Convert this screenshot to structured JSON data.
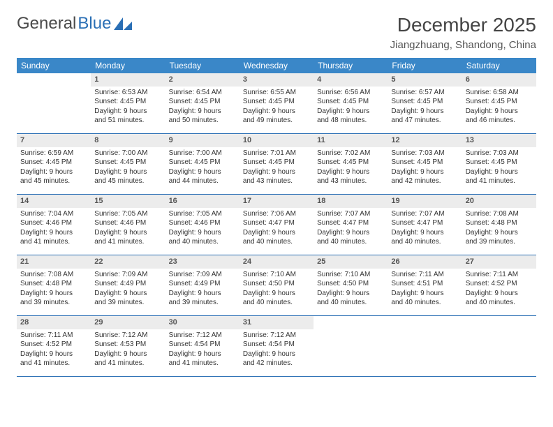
{
  "logo": {
    "part1": "General",
    "part2": "Blue"
  },
  "title": {
    "month": "December 2025",
    "location": "Jiangzhuang, Shandong, China"
  },
  "colors": {
    "header_bg": "#3a87c8",
    "header_text": "#ffffff",
    "daynum_bg": "#ececec",
    "border": "#2a6fb5",
    "logo_blue": "#2a6fb5",
    "text": "#333333"
  },
  "typography": {
    "body_fontsize": 10,
    "title_fontsize": 28,
    "location_fontsize": 15,
    "weekday_fontsize": 12
  },
  "weekdays": [
    "Sunday",
    "Monday",
    "Tuesday",
    "Wednesday",
    "Thursday",
    "Friday",
    "Saturday"
  ],
  "weeks": [
    [
      {
        "n": "",
        "sunrise": "",
        "sunset": "",
        "daylight1": "",
        "daylight2": ""
      },
      {
        "n": "1",
        "sunrise": "Sunrise: 6:53 AM",
        "sunset": "Sunset: 4:45 PM",
        "daylight1": "Daylight: 9 hours",
        "daylight2": "and 51 minutes."
      },
      {
        "n": "2",
        "sunrise": "Sunrise: 6:54 AM",
        "sunset": "Sunset: 4:45 PM",
        "daylight1": "Daylight: 9 hours",
        "daylight2": "and 50 minutes."
      },
      {
        "n": "3",
        "sunrise": "Sunrise: 6:55 AM",
        "sunset": "Sunset: 4:45 PM",
        "daylight1": "Daylight: 9 hours",
        "daylight2": "and 49 minutes."
      },
      {
        "n": "4",
        "sunrise": "Sunrise: 6:56 AM",
        "sunset": "Sunset: 4:45 PM",
        "daylight1": "Daylight: 9 hours",
        "daylight2": "and 48 minutes."
      },
      {
        "n": "5",
        "sunrise": "Sunrise: 6:57 AM",
        "sunset": "Sunset: 4:45 PM",
        "daylight1": "Daylight: 9 hours",
        "daylight2": "and 47 minutes."
      },
      {
        "n": "6",
        "sunrise": "Sunrise: 6:58 AM",
        "sunset": "Sunset: 4:45 PM",
        "daylight1": "Daylight: 9 hours",
        "daylight2": "and 46 minutes."
      }
    ],
    [
      {
        "n": "7",
        "sunrise": "Sunrise: 6:59 AM",
        "sunset": "Sunset: 4:45 PM",
        "daylight1": "Daylight: 9 hours",
        "daylight2": "and 45 minutes."
      },
      {
        "n": "8",
        "sunrise": "Sunrise: 7:00 AM",
        "sunset": "Sunset: 4:45 PM",
        "daylight1": "Daylight: 9 hours",
        "daylight2": "and 45 minutes."
      },
      {
        "n": "9",
        "sunrise": "Sunrise: 7:00 AM",
        "sunset": "Sunset: 4:45 PM",
        "daylight1": "Daylight: 9 hours",
        "daylight2": "and 44 minutes."
      },
      {
        "n": "10",
        "sunrise": "Sunrise: 7:01 AM",
        "sunset": "Sunset: 4:45 PM",
        "daylight1": "Daylight: 9 hours",
        "daylight2": "and 43 minutes."
      },
      {
        "n": "11",
        "sunrise": "Sunrise: 7:02 AM",
        "sunset": "Sunset: 4:45 PM",
        "daylight1": "Daylight: 9 hours",
        "daylight2": "and 43 minutes."
      },
      {
        "n": "12",
        "sunrise": "Sunrise: 7:03 AM",
        "sunset": "Sunset: 4:45 PM",
        "daylight1": "Daylight: 9 hours",
        "daylight2": "and 42 minutes."
      },
      {
        "n": "13",
        "sunrise": "Sunrise: 7:03 AM",
        "sunset": "Sunset: 4:45 PM",
        "daylight1": "Daylight: 9 hours",
        "daylight2": "and 41 minutes."
      }
    ],
    [
      {
        "n": "14",
        "sunrise": "Sunrise: 7:04 AM",
        "sunset": "Sunset: 4:46 PM",
        "daylight1": "Daylight: 9 hours",
        "daylight2": "and 41 minutes."
      },
      {
        "n": "15",
        "sunrise": "Sunrise: 7:05 AM",
        "sunset": "Sunset: 4:46 PM",
        "daylight1": "Daylight: 9 hours",
        "daylight2": "and 41 minutes."
      },
      {
        "n": "16",
        "sunrise": "Sunrise: 7:05 AM",
        "sunset": "Sunset: 4:46 PM",
        "daylight1": "Daylight: 9 hours",
        "daylight2": "and 40 minutes."
      },
      {
        "n": "17",
        "sunrise": "Sunrise: 7:06 AM",
        "sunset": "Sunset: 4:47 PM",
        "daylight1": "Daylight: 9 hours",
        "daylight2": "and 40 minutes."
      },
      {
        "n": "18",
        "sunrise": "Sunrise: 7:07 AM",
        "sunset": "Sunset: 4:47 PM",
        "daylight1": "Daylight: 9 hours",
        "daylight2": "and 40 minutes."
      },
      {
        "n": "19",
        "sunrise": "Sunrise: 7:07 AM",
        "sunset": "Sunset: 4:47 PM",
        "daylight1": "Daylight: 9 hours",
        "daylight2": "and 40 minutes."
      },
      {
        "n": "20",
        "sunrise": "Sunrise: 7:08 AM",
        "sunset": "Sunset: 4:48 PM",
        "daylight1": "Daylight: 9 hours",
        "daylight2": "and 39 minutes."
      }
    ],
    [
      {
        "n": "21",
        "sunrise": "Sunrise: 7:08 AM",
        "sunset": "Sunset: 4:48 PM",
        "daylight1": "Daylight: 9 hours",
        "daylight2": "and 39 minutes."
      },
      {
        "n": "22",
        "sunrise": "Sunrise: 7:09 AM",
        "sunset": "Sunset: 4:49 PM",
        "daylight1": "Daylight: 9 hours",
        "daylight2": "and 39 minutes."
      },
      {
        "n": "23",
        "sunrise": "Sunrise: 7:09 AM",
        "sunset": "Sunset: 4:49 PM",
        "daylight1": "Daylight: 9 hours",
        "daylight2": "and 39 minutes."
      },
      {
        "n": "24",
        "sunrise": "Sunrise: 7:10 AM",
        "sunset": "Sunset: 4:50 PM",
        "daylight1": "Daylight: 9 hours",
        "daylight2": "and 40 minutes."
      },
      {
        "n": "25",
        "sunrise": "Sunrise: 7:10 AM",
        "sunset": "Sunset: 4:50 PM",
        "daylight1": "Daylight: 9 hours",
        "daylight2": "and 40 minutes."
      },
      {
        "n": "26",
        "sunrise": "Sunrise: 7:11 AM",
        "sunset": "Sunset: 4:51 PM",
        "daylight1": "Daylight: 9 hours",
        "daylight2": "and 40 minutes."
      },
      {
        "n": "27",
        "sunrise": "Sunrise: 7:11 AM",
        "sunset": "Sunset: 4:52 PM",
        "daylight1": "Daylight: 9 hours",
        "daylight2": "and 40 minutes."
      }
    ],
    [
      {
        "n": "28",
        "sunrise": "Sunrise: 7:11 AM",
        "sunset": "Sunset: 4:52 PM",
        "daylight1": "Daylight: 9 hours",
        "daylight2": "and 41 minutes."
      },
      {
        "n": "29",
        "sunrise": "Sunrise: 7:12 AM",
        "sunset": "Sunset: 4:53 PM",
        "daylight1": "Daylight: 9 hours",
        "daylight2": "and 41 minutes."
      },
      {
        "n": "30",
        "sunrise": "Sunrise: 7:12 AM",
        "sunset": "Sunset: 4:54 PM",
        "daylight1": "Daylight: 9 hours",
        "daylight2": "and 41 minutes."
      },
      {
        "n": "31",
        "sunrise": "Sunrise: 7:12 AM",
        "sunset": "Sunset: 4:54 PM",
        "daylight1": "Daylight: 9 hours",
        "daylight2": "and 42 minutes."
      },
      {
        "n": "",
        "sunrise": "",
        "sunset": "",
        "daylight1": "",
        "daylight2": ""
      },
      {
        "n": "",
        "sunrise": "",
        "sunset": "",
        "daylight1": "",
        "daylight2": ""
      },
      {
        "n": "",
        "sunrise": "",
        "sunset": "",
        "daylight1": "",
        "daylight2": ""
      }
    ]
  ]
}
